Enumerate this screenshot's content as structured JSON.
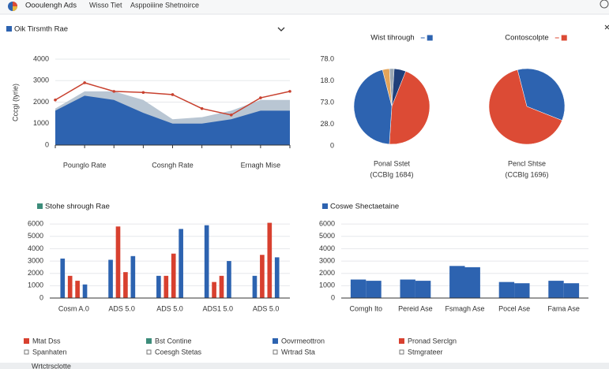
{
  "header": {
    "app_name": "Oooulengh Ads",
    "nav": [
      "Wisso Tiet",
      "Asppoiiine Shetnoirce"
    ]
  },
  "chart_data": [
    {
      "type": "area",
      "title": "Oik Tirsmth Rae",
      "ylabel": "Cccgi (tyrie)",
      "categories": [
        null,
        "Pounglo Rate",
        null,
        null,
        "Cosngh Rate",
        null,
        null,
        "Ernagh Mise",
        null
      ],
      "series": [
        {
          "style": "area",
          "color": "#b9c6d3",
          "values": [
            1700,
            2500,
            2500,
            2100,
            1200,
            1300,
            1600,
            2100,
            2100
          ]
        },
        {
          "style": "area",
          "color": "#2d63b0",
          "values": [
            1600,
            2300,
            2100,
            1500,
            1000,
            1000,
            1200,
            1600,
            1600
          ]
        },
        {
          "style": "line",
          "color": "#c8412f",
          "values": [
            2100,
            2900,
            2500,
            2450,
            2350,
            1700,
            1400,
            2200,
            2500
          ]
        }
      ],
      "ylim": [
        0,
        4000
      ],
      "yticks": [
        0,
        1000,
        2000,
        3000,
        4000
      ],
      "grid": true
    },
    {
      "type": "pie",
      "title": "Wist tihrough",
      "legend_color": "#2d63b0",
      "values": [
        3,
        2,
        5,
        45,
        45
      ],
      "colors": [
        "#e3a45a",
        "#9aa7b4",
        "#1f3f7a",
        "#dc4b35",
        "#2d63b0"
      ],
      "caption": "Ponal Sstet",
      "subcaption": "(CCBIg 1684)"
    },
    {
      "type": "pie",
      "title": "Contoscolpte",
      "legend_color": "#dc4b35",
      "values": [
        35,
        65
      ],
      "colors": [
        "#2d63b0",
        "#dc4b35"
      ],
      "caption": "Pencl Shtse",
      "subcaption": "(CCBIg 1696)"
    },
    {
      "type": "bar",
      "title": "Stohe shrough Rae",
      "title_color": "#3c8c7a",
      "categories": [
        "Cosm A.0",
        "ADS 5.0",
        "ADS 5.0",
        "ADS1 5.0",
        "ADS 5.0"
      ],
      "series": [
        {
          "color": "#2d63b0",
          "values": [
            3200,
            3100,
            1800,
            5900,
            1800
          ]
        },
        {
          "color": "#d8402f",
          "values": [
            1800,
            5800,
            1800,
            1300,
            3500
          ]
        },
        {
          "color": "#d8402f",
          "values": [
            1400,
            2100,
            3600,
            1800,
            6100
          ]
        },
        {
          "color": "#2d63b0",
          "values": [
            1100,
            3400,
            5600,
            3000,
            3300
          ]
        }
      ],
      "ylim": [
        0,
        6200
      ],
      "yticks": [
        0,
        1000,
        2000,
        3000,
        4000,
        5000,
        6000
      ],
      "grid": true
    },
    {
      "type": "bar",
      "title": "Coswe Shectaetaine",
      "title_color": "#2d63b0",
      "categories": [
        "Comgh Ito",
        "Pereid Ase",
        "Fsmagh Ase",
        "Pocel Ase",
        "Fama Ase"
      ],
      "series": [
        {
          "color": "#2d63b0",
          "values": [
            1500,
            1500,
            2600,
            1300,
            1400
          ]
        },
        {
          "color": "#2d63b0",
          "values": [
            1400,
            1400,
            2500,
            1200,
            1200
          ]
        }
      ],
      "ylim": [
        0,
        6200
      ],
      "yticks": [
        0,
        1000,
        2000,
        3000,
        4000,
        5000,
        6000
      ],
      "grid": true
    }
  ],
  "side_axis": [
    "78.0",
    "18.0",
    "73.0",
    "28.0",
    "0"
  ],
  "legend_items": [
    {
      "label": "Mtat Dss",
      "sublabel": "Spanhaten",
      "color": "#d8402f"
    },
    {
      "label": "Bst Contine",
      "sublabel": "Coesgh Stetas",
      "color": "#3c8c7a"
    },
    {
      "label": "Oovrmeottron",
      "sublabel": "Wrtrad Sta",
      "color": "#2d63b0"
    },
    {
      "label": "Pronad Serclgn",
      "sublabel": "Stmgrateer",
      "color": "#d8402f"
    }
  ],
  "status_bar": "Wrtctrsclotte"
}
